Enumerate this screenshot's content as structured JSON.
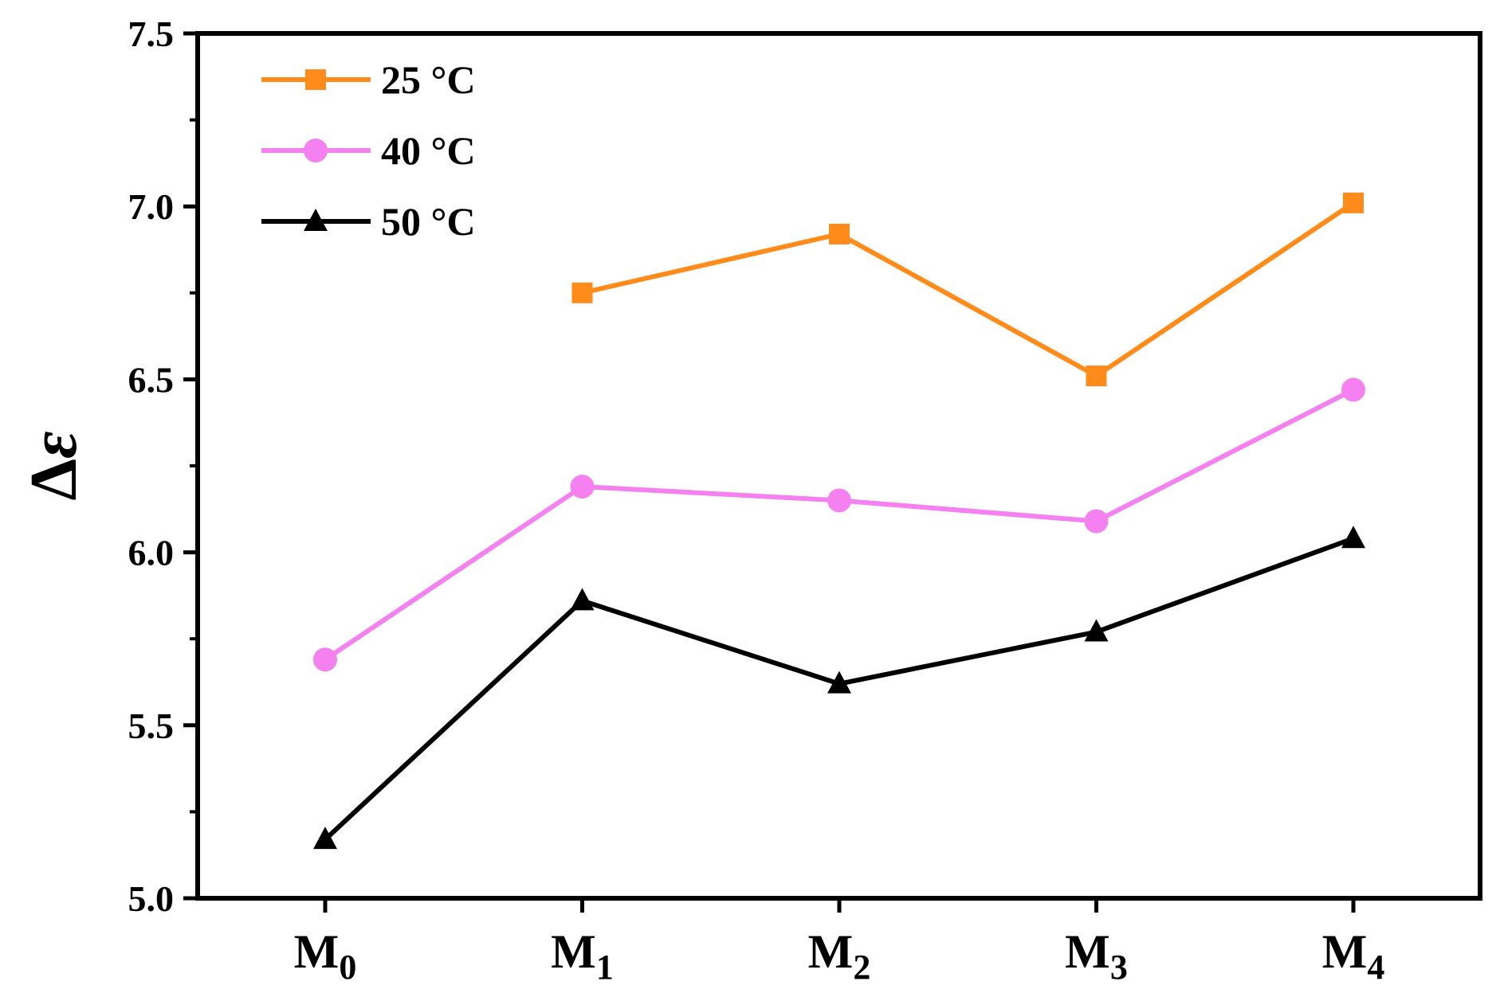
{
  "chart_data": {
    "type": "line",
    "title": "",
    "xlabel": "",
    "ylabel": "Δε",
    "ylabel_parts": {
      "symbol": "Δ",
      "variable": "ε"
    },
    "categories": [
      "M0",
      "M1",
      "M2",
      "M3",
      "M4"
    ],
    "category_labels": [
      {
        "main": "M",
        "sub": "0"
      },
      {
        "main": "M",
        "sub": "1"
      },
      {
        "main": "M",
        "sub": "2"
      },
      {
        "main": "M",
        "sub": "3"
      },
      {
        "main": "M",
        "sub": "4"
      }
    ],
    "ylim": [
      5.0,
      7.5
    ],
    "yticks": [
      5.0,
      5.5,
      6.0,
      6.5,
      7.0,
      7.5
    ],
    "ytick_labels": [
      "5.0",
      "5.5",
      "6.0",
      "6.5",
      "7.0",
      "7.5"
    ],
    "grid": false,
    "legend_position": "top-left",
    "series": [
      {
        "name": "25 °C",
        "color": "#ff8c1a",
        "marker": "square",
        "values": [
          null,
          6.75,
          6.92,
          6.51,
          7.01
        ]
      },
      {
        "name": "40 °C",
        "color": "#f580f0",
        "marker": "circle",
        "values": [
          5.69,
          6.19,
          6.15,
          6.09,
          6.47
        ]
      },
      {
        "name": "50 °C",
        "color": "#000000",
        "marker": "triangle",
        "values": [
          5.17,
          5.86,
          5.62,
          5.77,
          6.04
        ]
      }
    ]
  }
}
